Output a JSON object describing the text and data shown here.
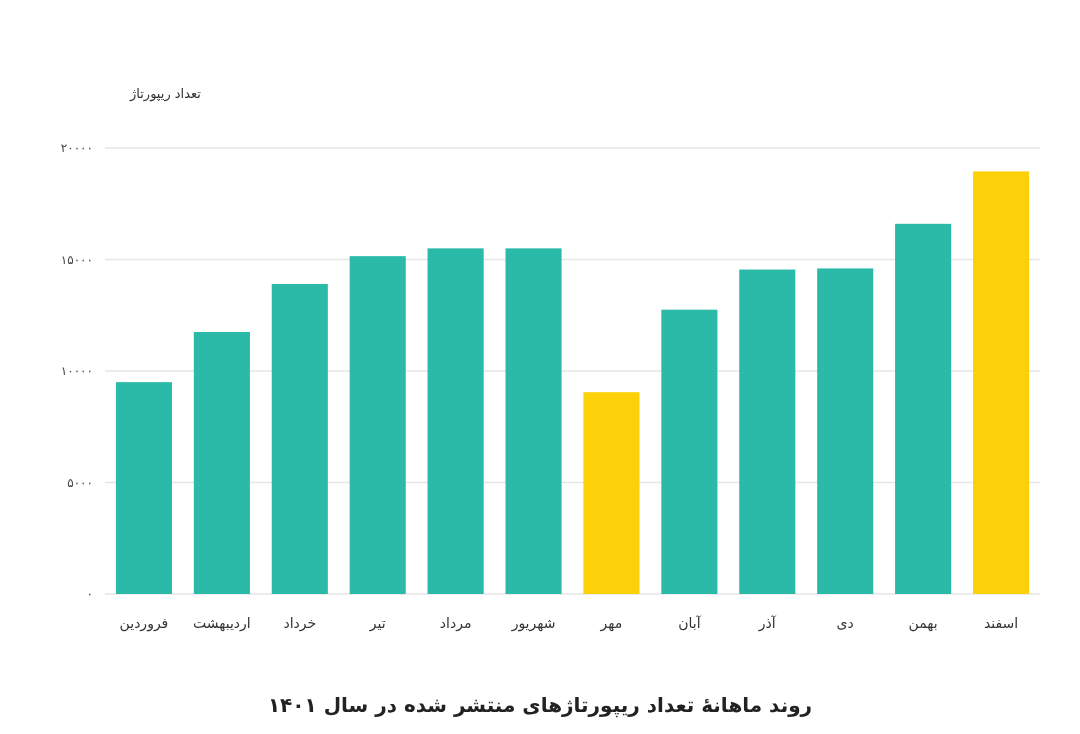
{
  "chart_data": {
    "type": "bar",
    "title": "روند ماهانهٔ تعداد ریپورتاژهای منتشر شده در سال ۱۴۰۱",
    "ylabel": "تعداد ریپورتاژ",
    "categories": [
      "فروردین",
      "اردیبهشت",
      "خرداد",
      "تیر",
      "مرداد",
      "شهریور",
      "مهر",
      "آبان",
      "آذر",
      "دی",
      "بهمن",
      "اسفند"
    ],
    "values": [
      9500,
      11750,
      13900,
      15150,
      15500,
      15500,
      9050,
      12750,
      14550,
      14600,
      16600,
      18950
    ],
    "colors": [
      "#2bbaa7",
      "#2bbaa7",
      "#2bbaa7",
      "#2bbaa7",
      "#2bbaa7",
      "#2bbaa7",
      "#fdd10a",
      "#2bbaa7",
      "#2bbaa7",
      "#2bbaa7",
      "#2bbaa7",
      "#fdd10a"
    ],
    "ylim": [
      0,
      20000
    ],
    "yticks": [
      {
        "value": 0,
        "label": "۰"
      },
      {
        "value": 5000,
        "label": "۵۰۰۰"
      },
      {
        "value": 10000,
        "label": "۱۰۰۰۰"
      },
      {
        "value": 15000,
        "label": "۱۵۰۰۰"
      },
      {
        "value": 20000,
        "label": "۲۰۰۰۰"
      }
    ],
    "grid": "y"
  }
}
